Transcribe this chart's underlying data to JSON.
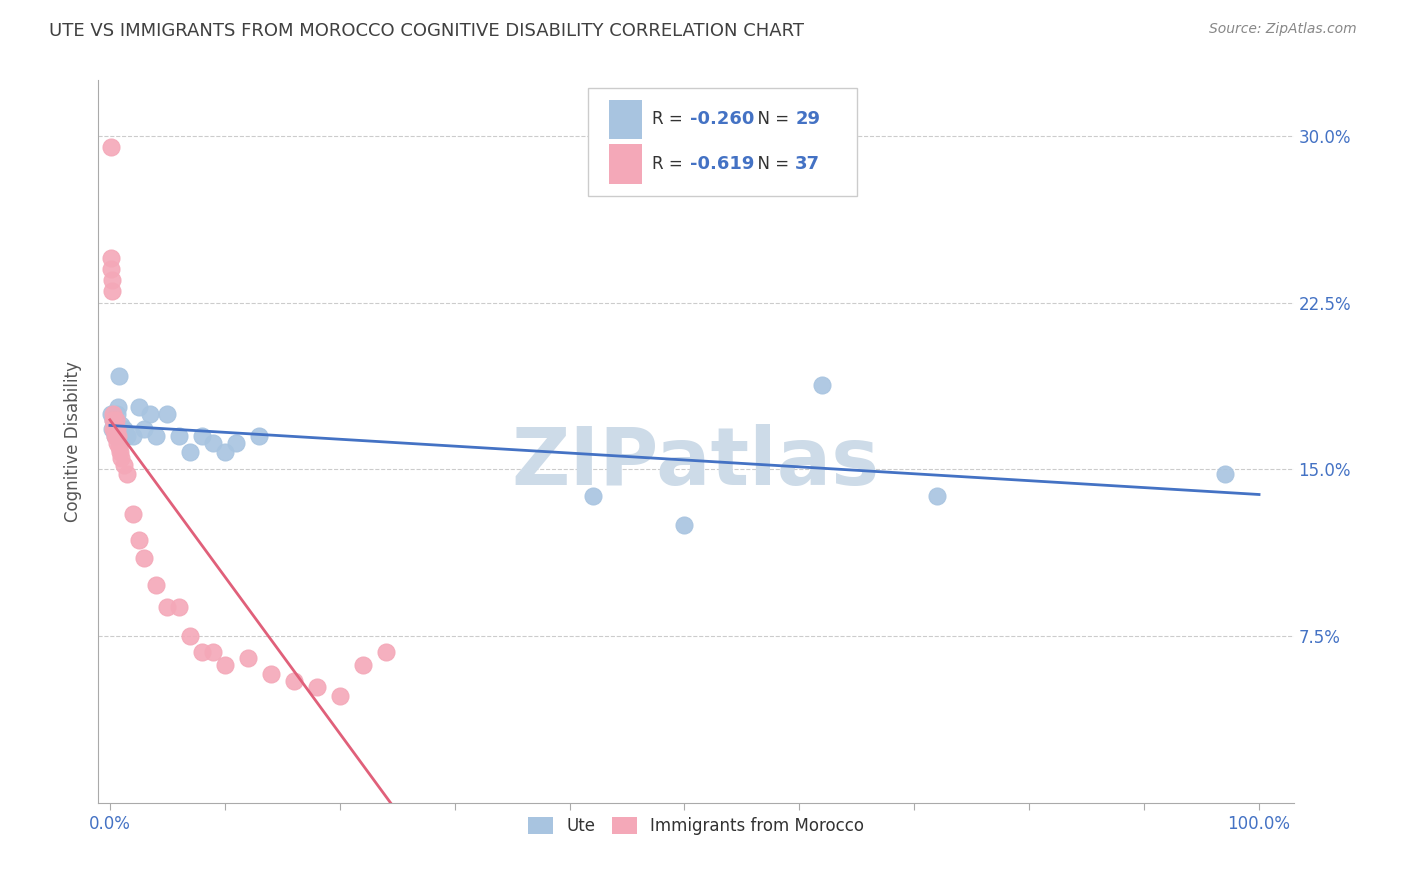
{
  "title": "UTE VS IMMIGRANTS FROM MOROCCO COGNITIVE DISABILITY CORRELATION CHART",
  "source": "Source: ZipAtlas.com",
  "ylabel": "Cognitive Disability",
  "yaxis_labels": [
    "7.5%",
    "15.0%",
    "22.5%",
    "30.0%"
  ],
  "yaxis_values": [
    0.075,
    0.15,
    0.225,
    0.3
  ],
  "xaxis_ticks": [
    0.0,
    0.1,
    0.2,
    0.3,
    0.4,
    0.5,
    0.6,
    0.7,
    0.8,
    0.9,
    1.0
  ],
  "xaxis_labels": [
    "0.0%",
    "",
    "",
    "",
    "",
    "",
    "",
    "",
    "",
    "",
    "100.0%"
  ],
  "ylim": [
    0.0,
    0.325
  ],
  "xlim": [
    -0.01,
    1.03
  ],
  "ute_color": "#a8c4e0",
  "morocco_color": "#f4a8b8",
  "ute_line_color": "#4472c4",
  "morocco_line_color": "#e0607a",
  "ute_R": -0.26,
  "ute_N": 29,
  "morocco_R": -0.619,
  "morocco_N": 37,
  "legend_label_ute": "Ute",
  "legend_label_morocco": "Immigrants from Morocco",
  "ute_x": [
    0.001,
    0.002,
    0.003,
    0.004,
    0.005,
    0.006,
    0.007,
    0.008,
    0.01,
    0.012,
    0.015,
    0.02,
    0.025,
    0.03,
    0.035,
    0.04,
    0.05,
    0.06,
    0.07,
    0.08,
    0.09,
    0.1,
    0.11,
    0.13,
    0.42,
    0.5,
    0.62,
    0.72,
    0.97
  ],
  "ute_y": [
    0.175,
    0.168,
    0.172,
    0.165,
    0.168,
    0.175,
    0.178,
    0.192,
    0.17,
    0.168,
    0.165,
    0.165,
    0.178,
    0.168,
    0.175,
    0.165,
    0.175,
    0.165,
    0.158,
    0.165,
    0.162,
    0.158,
    0.162,
    0.165,
    0.138,
    0.125,
    0.188,
    0.138,
    0.148
  ],
  "morocco_x": [
    0.001,
    0.001,
    0.001,
    0.002,
    0.002,
    0.003,
    0.003,
    0.003,
    0.004,
    0.004,
    0.005,
    0.005,
    0.006,
    0.006,
    0.007,
    0.008,
    0.009,
    0.01,
    0.012,
    0.015,
    0.02,
    0.025,
    0.03,
    0.04,
    0.05,
    0.06,
    0.07,
    0.08,
    0.09,
    0.1,
    0.12,
    0.14,
    0.16,
    0.18,
    0.2,
    0.22,
    0.24
  ],
  "morocco_y": [
    0.295,
    0.245,
    0.24,
    0.23,
    0.235,
    0.175,
    0.172,
    0.168,
    0.168,
    0.165,
    0.172,
    0.165,
    0.168,
    0.162,
    0.165,
    0.16,
    0.158,
    0.155,
    0.152,
    0.148,
    0.13,
    0.118,
    0.11,
    0.098,
    0.088,
    0.088,
    0.075,
    0.068,
    0.068,
    0.062,
    0.065,
    0.058,
    0.055,
    0.052,
    0.048,
    0.062,
    0.068
  ],
  "watermark": "ZIPatlas",
  "watermark_color": "#cddbe8",
  "background_color": "#ffffff",
  "grid_color": "#cccccc",
  "axis_label_color": "#4472c4",
  "title_color": "#404040"
}
